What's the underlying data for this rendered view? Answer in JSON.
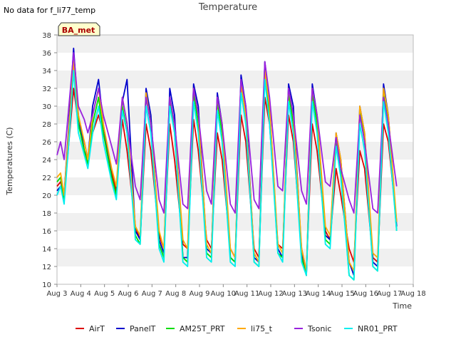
{
  "header": {
    "no_data_note": "No data for f_li77_temp"
  },
  "chart_data": {
    "type": "line",
    "title": "Temperature",
    "xlabel": "Time",
    "ylabel": "Temperatures (C)",
    "site_badge": "BA_met",
    "ylim": [
      10,
      38
    ],
    "yticks": [
      10,
      12,
      14,
      16,
      18,
      20,
      22,
      24,
      26,
      28,
      30,
      32,
      34,
      36,
      38
    ],
    "xlim": [
      3,
      18
    ],
    "xticks": [
      3,
      4,
      5,
      6,
      7,
      8,
      9,
      10,
      11,
      12,
      13,
      14,
      15,
      16,
      17,
      18
    ],
    "xtick_labels": [
      "Aug 3",
      "Aug 4",
      "Aug 5",
      "Aug 6",
      "Aug 7",
      "Aug 8",
      "Aug 9",
      "Aug 10",
      "Aug 11",
      "Aug 12",
      "Aug 13",
      "Aug 14",
      "Aug 15",
      "Aug 16",
      "Aug 17",
      "Aug 18"
    ],
    "grid": "horizontal-bands",
    "legend_position": "bottom",
    "series": [
      {
        "name": "AirT",
        "color": "#dd0000",
        "x": [
          3.0,
          3.15,
          3.3,
          3.5,
          3.7,
          3.9,
          4.15,
          4.3,
          4.5,
          4.75,
          4.95,
          5.3,
          5.5,
          5.75,
          5.95,
          6.3,
          6.5,
          6.75,
          6.95,
          7.3,
          7.5,
          7.75,
          7.95,
          8.3,
          8.5,
          8.75,
          8.95,
          9.3,
          9.5,
          9.75,
          9.95,
          10.3,
          10.5,
          10.75,
          10.95,
          11.3,
          11.5,
          11.75,
          11.95,
          12.3,
          12.5,
          12.75,
          12.95,
          13.3,
          13.5,
          13.75,
          13.95,
          14.3,
          14.5,
          14.75,
          14.95,
          15.3,
          15.5,
          15.75,
          15.95,
          16.3,
          16.5,
          16.75,
          16.95,
          17.3
        ],
        "values": [
          21,
          21.5,
          20,
          26,
          32,
          28,
          26,
          24,
          27,
          29,
          27,
          22.5,
          20.5,
          28.5,
          25,
          16.5,
          15,
          28,
          25,
          15.5,
          14,
          28,
          24,
          14.5,
          14,
          28.5,
          25,
          15,
          14,
          27,
          24,
          14,
          13,
          29,
          26,
          14,
          13,
          31,
          28,
          14.5,
          14,
          29,
          26,
          14,
          11.5,
          28,
          25,
          16,
          15,
          23,
          20,
          14,
          12.5,
          25,
          23,
          13,
          12.5,
          28,
          26,
          17
        ]
      },
      {
        "name": "PanelT",
        "color": "#0000cc",
        "x": [
          3.0,
          3.15,
          3.3,
          3.5,
          3.7,
          3.9,
          4.15,
          4.3,
          4.5,
          4.75,
          4.95,
          5.3,
          5.5,
          5.75,
          5.95,
          6.3,
          6.5,
          6.75,
          6.95,
          7.3,
          7.5,
          7.75,
          7.95,
          8.3,
          8.5,
          8.75,
          8.95,
          9.3,
          9.5,
          9.75,
          9.95,
          10.3,
          10.5,
          10.75,
          10.95,
          11.3,
          11.5,
          11.75,
          11.95,
          12.3,
          12.5,
          12.75,
          12.95,
          13.3,
          13.5,
          13.75,
          13.95,
          14.3,
          14.5,
          14.75,
          14.95,
          15.3,
          15.5,
          15.75,
          15.95,
          16.3,
          16.5,
          16.75,
          16.95,
          17.3
        ],
        "values": [
          20.5,
          21,
          20,
          28,
          36.5,
          29,
          25,
          24,
          30,
          33,
          28,
          22,
          20,
          30.5,
          33,
          16,
          15,
          32,
          29,
          15,
          13.5,
          32,
          29,
          13,
          13,
          32.5,
          30,
          14,
          13.5,
          31.5,
          28,
          13,
          12.5,
          33.5,
          30,
          13,
          12.5,
          35,
          30,
          14,
          13,
          32.5,
          30,
          13.5,
          11,
          32.5,
          29,
          15.5,
          15,
          27,
          24,
          12.5,
          11,
          30,
          27,
          12.5,
          12,
          32.5,
          29,
          16.5
        ]
      },
      {
        "name": "AM25T_PRT",
        "color": "#00dd00",
        "x": [
          3.0,
          3.15,
          3.3,
          3.5,
          3.7,
          3.9,
          4.15,
          4.3,
          4.5,
          4.75,
          4.95,
          5.3,
          5.5,
          5.75,
          5.95,
          6.3,
          6.5,
          6.75,
          6.95,
          7.3,
          7.5,
          7.75,
          7.95,
          8.3,
          8.5,
          8.75,
          8.95,
          9.3,
          9.5,
          9.75,
          9.95,
          10.3,
          10.5,
          10.75,
          10.95,
          11.3,
          11.5,
          11.75,
          11.95,
          12.3,
          12.5,
          12.75,
          12.95,
          13.3,
          13.5,
          13.75,
          13.95,
          14.3,
          14.5,
          14.75,
          14.95,
          15.3,
          15.5,
          15.75,
          15.95,
          16.3,
          16.5,
          16.75,
          16.95,
          17.3
        ],
        "values": [
          21.5,
          22,
          19.5,
          27,
          35,
          28,
          25,
          23.5,
          28,
          31,
          27,
          22,
          20,
          30,
          27,
          15.5,
          14.5,
          31,
          28,
          14.5,
          13,
          30.5,
          27,
          13,
          12.5,
          31.5,
          28,
          13.5,
          13,
          30.5,
          27,
          13,
          12.5,
          32.5,
          29,
          12.5,
          12,
          34,
          29,
          13.5,
          13,
          31.5,
          28,
          13,
          11,
          31.5,
          28,
          15,
          14.5,
          26,
          23,
          11,
          10.5,
          29.5,
          26,
          12,
          11.5,
          31.5,
          28,
          16
        ]
      },
      {
        "name": "li75_t",
        "color": "#ffaa00",
        "x": [
          3.0,
          3.15,
          3.3,
          3.5,
          3.7,
          3.9,
          4.15,
          4.3,
          4.5,
          4.75,
          4.95,
          5.3,
          5.5,
          5.75,
          5.95,
          6.3,
          6.5,
          6.75,
          6.95,
          7.3,
          7.5,
          7.75,
          7.95,
          8.3,
          8.5,
          8.75,
          8.95,
          9.3,
          9.5,
          9.75,
          9.95,
          10.3,
          10.5,
          10.75,
          10.95,
          11.3,
          11.5,
          11.75,
          11.95,
          12.3,
          12.5,
          12.75,
          12.95,
          13.3,
          13.5,
          13.75,
          13.95,
          14.3,
          14.5,
          14.75,
          14.95,
          15.3,
          15.5,
          15.75,
          15.95,
          16.3,
          16.5,
          16.75,
          16.95,
          17.3
        ],
        "values": [
          22,
          22.5,
          20,
          27.5,
          35,
          29,
          26,
          24,
          29,
          32,
          28,
          23,
          21,
          31,
          28,
          16.5,
          15.5,
          31.5,
          28,
          16,
          14,
          31,
          28,
          15,
          14,
          32,
          29,
          14.5,
          13.5,
          31,
          28,
          14,
          13,
          32.5,
          29,
          13.5,
          12.5,
          34,
          30,
          14.5,
          13.5,
          32,
          29,
          14,
          11.5,
          32,
          29,
          16.5,
          15.5,
          27,
          24,
          12.5,
          11.5,
          30,
          27,
          13.5,
          13,
          32,
          29,
          17
        ]
      },
      {
        "name": "Tsonic",
        "color": "#9922dd",
        "x": [
          3.0,
          3.15,
          3.3,
          3.5,
          3.7,
          3.9,
          4.15,
          4.3,
          4.5,
          4.75,
          4.95,
          5.3,
          5.5,
          5.75,
          5.95,
          6.3,
          6.5,
          6.75,
          6.95,
          7.3,
          7.5,
          7.75,
          7.95,
          8.3,
          8.5,
          8.75,
          8.95,
          9.3,
          9.5,
          9.75,
          9.95,
          10.3,
          10.5,
          10.75,
          10.95,
          11.3,
          11.5,
          11.75,
          11.95,
          12.3,
          12.5,
          12.75,
          12.95,
          13.3,
          13.5,
          13.75,
          13.95,
          14.3,
          14.5,
          14.75,
          14.95,
          15.3,
          15.5,
          15.75,
          15.95,
          16.3,
          16.5,
          16.75,
          16.95,
          17.3
        ],
        "values": [
          24.5,
          26,
          24,
          30,
          36,
          30,
          28.5,
          27,
          29,
          32,
          29,
          25.5,
          23.5,
          31,
          28,
          21,
          19.5,
          31,
          28,
          19.5,
          18,
          31,
          28,
          19,
          18.5,
          32,
          29,
          20.5,
          19,
          31,
          28,
          19,
          18,
          33,
          30,
          19.5,
          18.5,
          35,
          31,
          21,
          20.5,
          32,
          29,
          20.5,
          19,
          32,
          29,
          21.5,
          21,
          26.5,
          23,
          19.5,
          18,
          29,
          26,
          18.5,
          18,
          31,
          28,
          21
        ]
      },
      {
        "name": "NR01_PRT",
        "color": "#00eeee",
        "x": [
          3.0,
          3.15,
          3.3,
          3.5,
          3.7,
          3.9,
          4.15,
          4.3,
          4.5,
          4.75,
          4.95,
          5.3,
          5.5,
          5.75,
          5.95,
          6.3,
          6.5,
          6.75,
          6.95,
          7.3,
          7.5,
          7.75,
          7.95,
          8.3,
          8.5,
          8.75,
          8.95,
          9.3,
          9.5,
          9.75,
          9.95,
          10.3,
          10.5,
          10.75,
          10.95,
          11.3,
          11.5,
          11.75,
          11.95,
          12.3,
          12.5,
          12.75,
          12.95,
          13.3,
          13.5,
          13.75,
          13.95,
          14.3,
          14.5,
          14.75,
          14.95,
          15.3,
          15.5,
          15.75,
          15.95,
          16.3,
          16.5,
          16.75,
          16.95,
          17.3
        ],
        "values": [
          20,
          21,
          19,
          26,
          34,
          27,
          24.5,
          23,
          27,
          30,
          26,
          21.5,
          19.5,
          29.5,
          27,
          15,
          14.5,
          30,
          27,
          14,
          12.5,
          30,
          27,
          12.5,
          12,
          30.5,
          27,
          13,
          12.5,
          29.5,
          26,
          12.5,
          12,
          31.5,
          28,
          12.5,
          12,
          33,
          28,
          13.5,
          12.5,
          30.5,
          27,
          12.5,
          11,
          30.5,
          27,
          14.5,
          14,
          25.5,
          22,
          11,
          10.5,
          28,
          25,
          12,
          11.5,
          30.5,
          27,
          16
        ]
      }
    ]
  }
}
